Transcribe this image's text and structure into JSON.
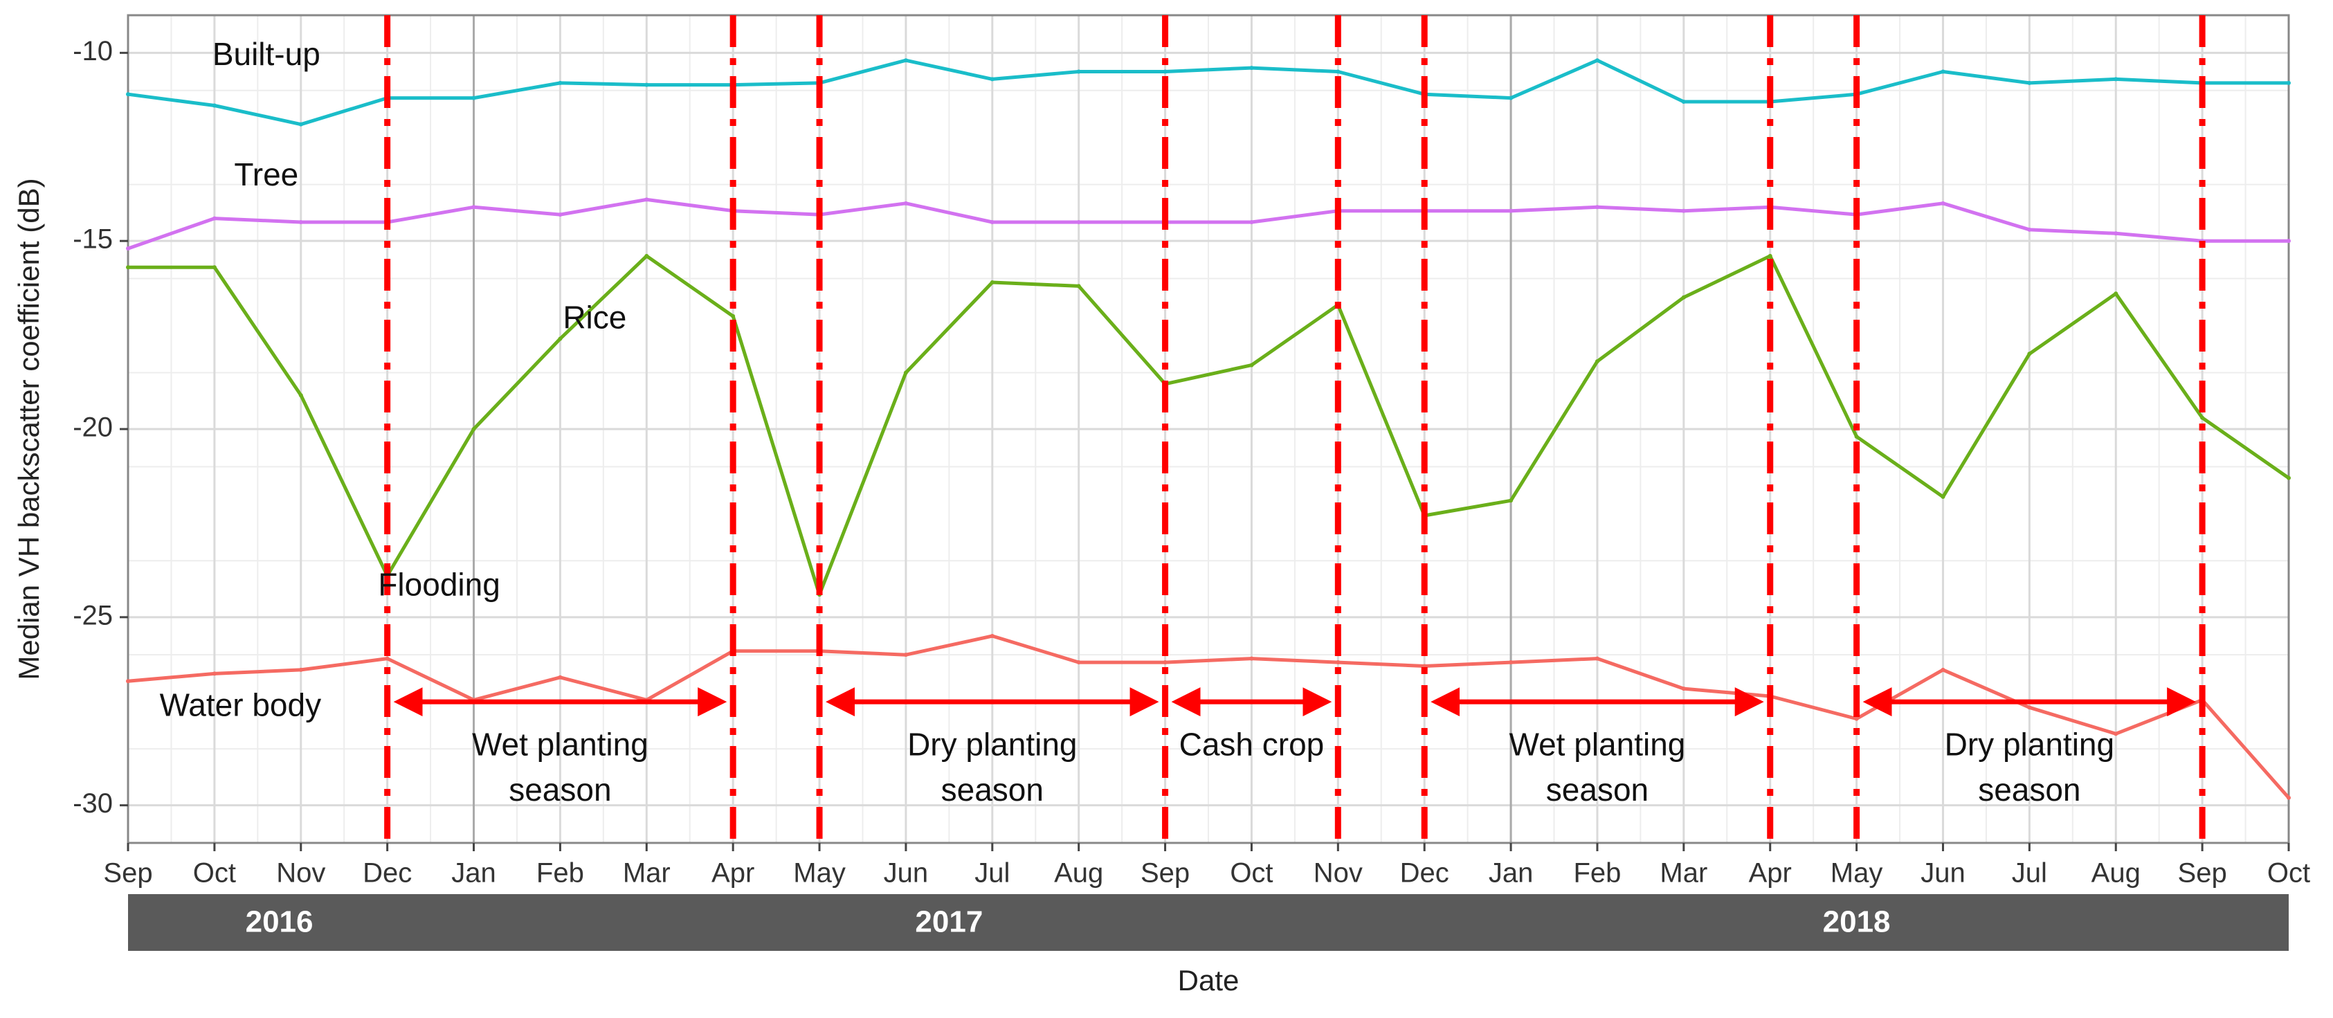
{
  "chart_data": {
    "type": "line",
    "title": "",
    "xlabel": "Date",
    "ylabel": "Median VH backscatter coefficient (dB)",
    "ylim": [
      -31,
      -9
    ],
    "yticks": [
      -10,
      -15,
      -20,
      -25,
      -30
    ],
    "x_months": [
      "Sep",
      "Oct",
      "Nov",
      "Dec",
      "Jan",
      "Feb",
      "Mar",
      "Apr",
      "May",
      "Jun",
      "Jul",
      "Aug",
      "Sep",
      "Oct",
      "Nov",
      "Dec",
      "Jan",
      "Feb",
      "Mar",
      "Apr",
      "May",
      "Jun",
      "Jul",
      "Aug",
      "Sep",
      "Oct"
    ],
    "x_tick_labels": [
      "Sep",
      "Oct",
      "Nov",
      "Dec",
      "Jan",
      "Feb",
      "Mar",
      "Apr",
      "May",
      "Jun",
      "Jul",
      "Aug",
      "Sep",
      "Oct",
      "Nov",
      "Dec",
      "Jan",
      "Feb",
      "Mar",
      "Apr",
      "May",
      "Jun",
      "Jul",
      "Aug",
      "Sep",
      "Oct"
    ],
    "years": [
      {
        "label": "2016",
        "start_index": 0,
        "end_index": 4
      },
      {
        "label": "2017",
        "start_index": 4,
        "end_index": 16
      },
      {
        "label": "2018",
        "start_index": 16,
        "end_index": 25
      }
    ],
    "grid": true,
    "series": [
      {
        "name": "Built-up",
        "color": "#1ABDC9",
        "x": [
          0,
          1,
          2,
          3,
          4,
          5,
          6,
          7,
          8,
          9,
          10,
          11,
          12,
          13,
          14,
          15,
          16,
          17,
          18,
          19,
          20,
          21,
          22,
          23,
          24,
          25
        ],
        "values": [
          -11.1,
          -11.4,
          -11.9,
          -11.2,
          -11.2,
          -10.8,
          -10.85,
          -10.85,
          -10.8,
          -10.2,
          -10.7,
          -10.5,
          -10.5,
          -10.4,
          -10.5,
          -11.1,
          -11.2,
          -10.2,
          -11.3,
          -11.3,
          -11.1,
          -10.5,
          -10.8,
          -10.7,
          -10.8,
          -10.8
        ]
      },
      {
        "name": "Tree",
        "color": "#D272F0",
        "x": [
          0,
          1,
          2,
          3,
          4,
          5,
          6,
          7,
          8,
          9,
          10,
          11,
          12,
          13,
          14,
          15,
          16,
          17,
          18,
          19,
          20,
          21,
          22,
          23,
          24,
          25
        ],
        "values": [
          -15.2,
          -14.4,
          -14.5,
          -14.5,
          -14.1,
          -14.3,
          -13.9,
          -14.2,
          -14.3,
          -14.0,
          -14.5,
          -14.5,
          -14.5,
          -14.5,
          -14.2,
          -14.2,
          -14.2,
          -14.1,
          -14.2,
          -14.1,
          -14.3,
          -14.0,
          -14.7,
          -14.8,
          -15.0,
          -15.0
        ]
      },
      {
        "name": "Rice",
        "color": "#6AAF1A",
        "x": [
          0,
          1,
          2,
          3,
          4,
          5,
          6,
          7,
          8,
          9,
          10,
          11,
          12,
          13,
          14,
          15,
          16,
          17,
          18,
          19,
          20,
          21,
          22,
          23,
          24,
          25
        ],
        "values": [
          -15.7,
          -15.7,
          -19.1,
          -23.9,
          -20.0,
          -17.6,
          -15.4,
          -17.0,
          -24.4,
          -18.5,
          -16.1,
          -16.2,
          -18.8,
          -18.3,
          -16.7,
          -22.3,
          -21.9,
          -18.2,
          -16.5,
          -15.4,
          -20.2,
          -21.8,
          -18.0,
          -16.4,
          -19.7,
          -21.3
        ]
      },
      {
        "name": "Water body",
        "color": "#F56A62",
        "x": [
          0,
          1,
          2,
          3,
          4,
          5,
          6,
          7,
          8,
          9,
          10,
          11,
          12,
          13,
          14,
          15,
          16,
          17,
          18,
          19,
          20,
          21,
          22,
          23,
          24,
          25
        ],
        "values": [
          -26.7,
          -26.5,
          -26.4,
          -26.1,
          -27.2,
          -26.6,
          -27.2,
          -25.9,
          -25.9,
          -26.0,
          -25.5,
          -26.2,
          -26.2,
          -26.1,
          -26.2,
          -26.3,
          -26.2,
          -26.1,
          -26.9,
          -27.1,
          -27.7,
          -26.4,
          -27.4,
          -28.1,
          -27.2,
          -29.8
        ]
      }
    ],
    "series_labels": [
      {
        "text": "Built-up",
        "x": 1.6,
        "y": -10.1
      },
      {
        "text": "Tree",
        "x": 1.6,
        "y": -13.3
      },
      {
        "text": "Rice",
        "x": 5.4,
        "y": -17.1
      },
      {
        "text": "Flooding",
        "x": 3.6,
        "y": -24.2
      },
      {
        "text": "Water body",
        "x": 1.3,
        "y": -27.4
      }
    ],
    "season_boundaries": [
      3,
      7,
      8,
      12,
      14,
      15,
      19,
      20,
      24
    ],
    "seasons": [
      {
        "from": 3,
        "to": 7,
        "line1": "Wet planting",
        "line2": "season"
      },
      {
        "from": 8,
        "to": 12,
        "line1": "Dry planting",
        "line2": "season"
      },
      {
        "from": 12,
        "to": 14,
        "line1": "Cash crop",
        "line2": ""
      },
      {
        "from": 15,
        "to": 19,
        "line1": "Wet planting",
        "line2": "season"
      },
      {
        "from": 20,
        "to": 24,
        "line1": "Dry planting",
        "line2": "season"
      }
    ],
    "colors": {
      "boundary": "#FF0000",
      "year_band": "#5A5A5A",
      "grid_major": "#DADADA",
      "grid_minor": "#EDEDED",
      "year_divider": "#AAAAAA"
    }
  }
}
